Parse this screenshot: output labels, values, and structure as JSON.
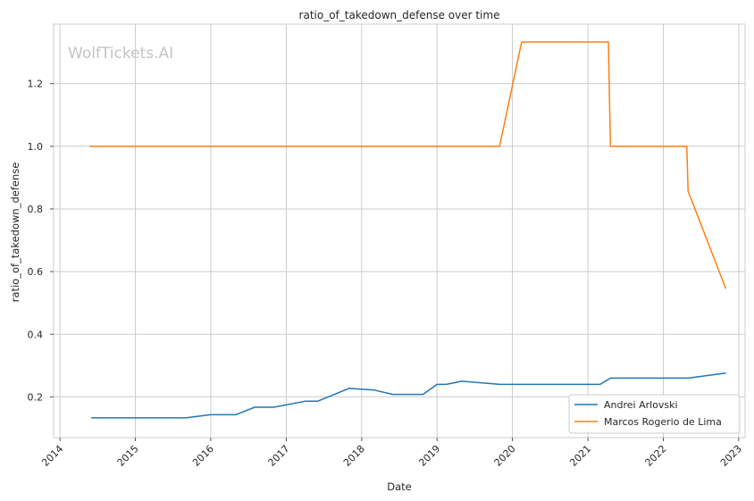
{
  "chart_data": {
    "type": "line",
    "title": "ratio_of_takedown_defense over time",
    "xlabel": "Date",
    "ylabel": "ratio_of_takedown_defense",
    "watermark": "WolfTickets.AI",
    "x_ticks": [
      "2014",
      "2015",
      "2016",
      "2017",
      "2018",
      "2019",
      "2020",
      "2021",
      "2022",
      "2023"
    ],
    "y_ticks": [
      "0.2",
      "0.4",
      "0.6",
      "0.8",
      "1.0",
      "1.2"
    ],
    "xlim": [
      "2013-12-01",
      "2023-02-01"
    ],
    "ylim": [
      0.07,
      1.39
    ],
    "grid": true,
    "legend_position": "bottom-right",
    "series": [
      {
        "name": "Andrei Arlovski",
        "color": "#1f77b4",
        "points": [
          [
            "2014-06-01",
            0.133
          ],
          [
            "2015-09-01",
            0.133
          ],
          [
            "2015-12-31",
            0.143
          ],
          [
            "2016-05-01",
            0.143
          ],
          [
            "2016-08-01",
            0.167
          ],
          [
            "2016-11-01",
            0.167
          ],
          [
            "2017-04-01",
            0.186
          ],
          [
            "2017-06-01",
            0.186
          ],
          [
            "2017-11-01",
            0.227
          ],
          [
            "2018-03-01",
            0.222
          ],
          [
            "2018-06-01",
            0.208
          ],
          [
            "2018-10-25",
            0.208
          ],
          [
            "2019-01-01",
            0.24
          ],
          [
            "2019-02-15",
            0.24
          ],
          [
            "2019-05-01",
            0.25
          ],
          [
            "2019-11-01",
            0.24
          ],
          [
            "2021-03-01",
            0.24
          ],
          [
            "2021-04-20",
            0.26
          ],
          [
            "2022-05-01",
            0.26
          ],
          [
            "2022-10-31",
            0.276
          ]
        ]
      },
      {
        "name": "Marcos Rogerio de Lima",
        "color": "#ff7f0e",
        "points": [
          [
            "2014-05-25",
            1.0
          ],
          [
            "2019-10-31",
            1.0
          ],
          [
            "2020-02-15",
            1.333
          ],
          [
            "2021-04-10",
            1.333
          ],
          [
            "2021-04-20",
            1.0
          ],
          [
            "2022-04-25",
            1.0
          ],
          [
            "2022-05-01",
            0.857
          ],
          [
            "2022-10-31",
            0.545
          ]
        ]
      }
    ]
  }
}
